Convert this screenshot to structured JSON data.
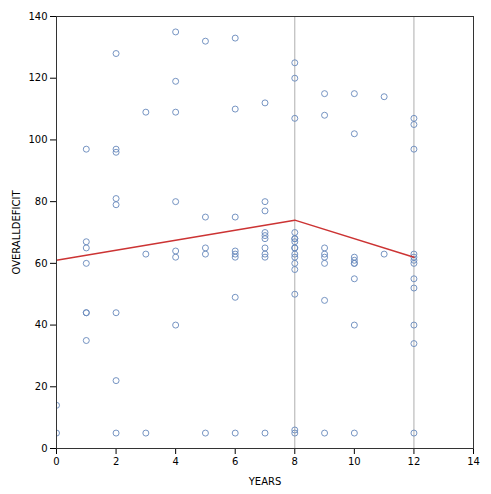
{
  "chart_data": {
    "type": "scatter",
    "xlabel": "YEARS",
    "ylabel": "OVERALLDEFICIT",
    "xlim": [
      0,
      14
    ],
    "ylim": [
      0,
      140
    ],
    "xticks": [
      0,
      2,
      4,
      6,
      8,
      10,
      12,
      14
    ],
    "yticks": [
      0,
      20,
      40,
      60,
      80,
      100,
      120,
      140
    ],
    "vlines": [
      {
        "x": 8,
        "color": "#999999"
      },
      {
        "x": 12,
        "color": "#999999"
      }
    ],
    "series": [
      {
        "type": "scatter",
        "color": "#6688bb",
        "marker": "circle",
        "x": [
          0,
          0,
          1,
          1,
          1,
          1,
          1,
          1,
          1,
          2,
          2,
          2,
          2,
          2,
          2,
          2,
          2,
          3,
          3,
          3,
          4,
          4,
          4,
          4,
          4,
          4,
          4,
          5,
          5,
          5,
          5,
          5,
          6,
          6,
          6,
          6,
          6,
          6,
          6,
          6,
          7,
          7,
          7,
          7,
          7,
          7,
          7,
          7,
          7,
          7,
          8,
          8,
          8,
          8,
          8,
          8,
          8,
          8,
          8,
          8,
          8,
          8,
          8,
          8,
          8,
          8,
          9,
          9,
          9,
          9,
          9,
          9,
          9,
          9,
          10,
          10,
          10,
          10,
          10,
          10,
          10,
          10,
          10,
          11,
          11,
          12,
          12,
          12,
          12,
          12,
          12,
          12,
          12,
          12,
          12,
          12,
          12
        ],
        "values": [
          5,
          14,
          35,
          44,
          44,
          60,
          65,
          67,
          97,
          5,
          22,
          44,
          79,
          81,
          96,
          97,
          128,
          5,
          63,
          109,
          40,
          62,
          64,
          80,
          109,
          119,
          135,
          5,
          63,
          65,
          75,
          132,
          5,
          49,
          62,
          63,
          64,
          75,
          110,
          133,
          5,
          62,
          63,
          65,
          68,
          69,
          70,
          77,
          80,
          112,
          5,
          6,
          50,
          58,
          60,
          62,
          63,
          65,
          65,
          67,
          68,
          68,
          70,
          107,
          120,
          125,
          5,
          48,
          60,
          62,
          63,
          65,
          108,
          115,
          5,
          40,
          55,
          60,
          60,
          61,
          62,
          102,
          115,
          63,
          114,
          5,
          34,
          40,
          52,
          55,
          60,
          61,
          62,
          63,
          97,
          105,
          107
        ]
      },
      {
        "type": "line",
        "color": "#cc3333",
        "line_style": "solid",
        "x": [
          0,
          8,
          12
        ],
        "values": [
          61,
          74,
          62
        ]
      }
    ]
  }
}
